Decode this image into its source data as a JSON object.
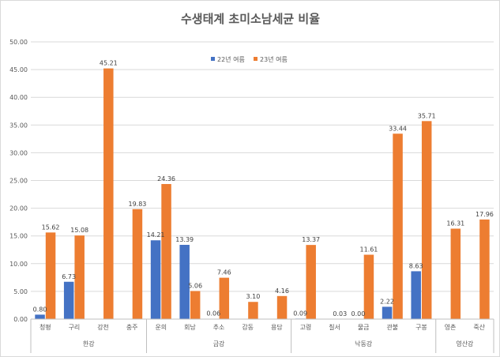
{
  "chart_data": {
    "type": "bar",
    "title": "수생태계 초미소남세균 비율",
    "ylim": [
      0,
      50
    ],
    "yticks": [
      "0.00",
      "5.00",
      "10.00",
      "15.00",
      "20.00",
      "25.00",
      "30.00",
      "35.00",
      "40.00",
      "45.00",
      "50.00"
    ],
    "grid": true,
    "legend_position": "top-center",
    "categories": [
      "청평",
      "구리",
      "강천",
      "충주",
      "운의",
      "회남",
      "추소",
      "감동",
      "용담",
      "고령",
      "칠서",
      "물금",
      "관불",
      "구봉",
      "영촌",
      "죽산"
    ],
    "groups": [
      {
        "name": "한강",
        "count": 4
      },
      {
        "name": "금강",
        "count": 5
      },
      {
        "name": "낙동강",
        "count": 5
      },
      {
        "name": "영산강",
        "count": 2
      }
    ],
    "series": [
      {
        "name": "22년 여름",
        "color": "#4472c4",
        "values": [
          0.8,
          6.73,
          null,
          null,
          14.21,
          13.39,
          0.06,
          null,
          null,
          0.09,
          null,
          0.0,
          2.22,
          8.63,
          null,
          null
        ],
        "labels": [
          "0.80",
          "6.73",
          "",
          "",
          "14.21",
          "13.39",
          "0.06",
          "",
          "",
          "0.09",
          "",
          "0.00",
          "2.22",
          "8.63",
          "",
          ""
        ]
      },
      {
        "name": "23년 여름",
        "color": "#ed7d31",
        "values": [
          15.62,
          15.08,
          45.21,
          19.83,
          24.36,
          5.06,
          7.46,
          3.1,
          4.16,
          13.37,
          0.03,
          11.61,
          33.44,
          35.71,
          16.31,
          17.96
        ],
        "labels": [
          "15.62",
          "15.08",
          "45.21",
          "19.83",
          "24.36",
          "5.06",
          "7.46",
          "3.10",
          "4.16",
          "13.37",
          "0.03",
          "11.61",
          "33.44",
          "35.71",
          "16.31",
          "17.96"
        ]
      }
    ]
  }
}
